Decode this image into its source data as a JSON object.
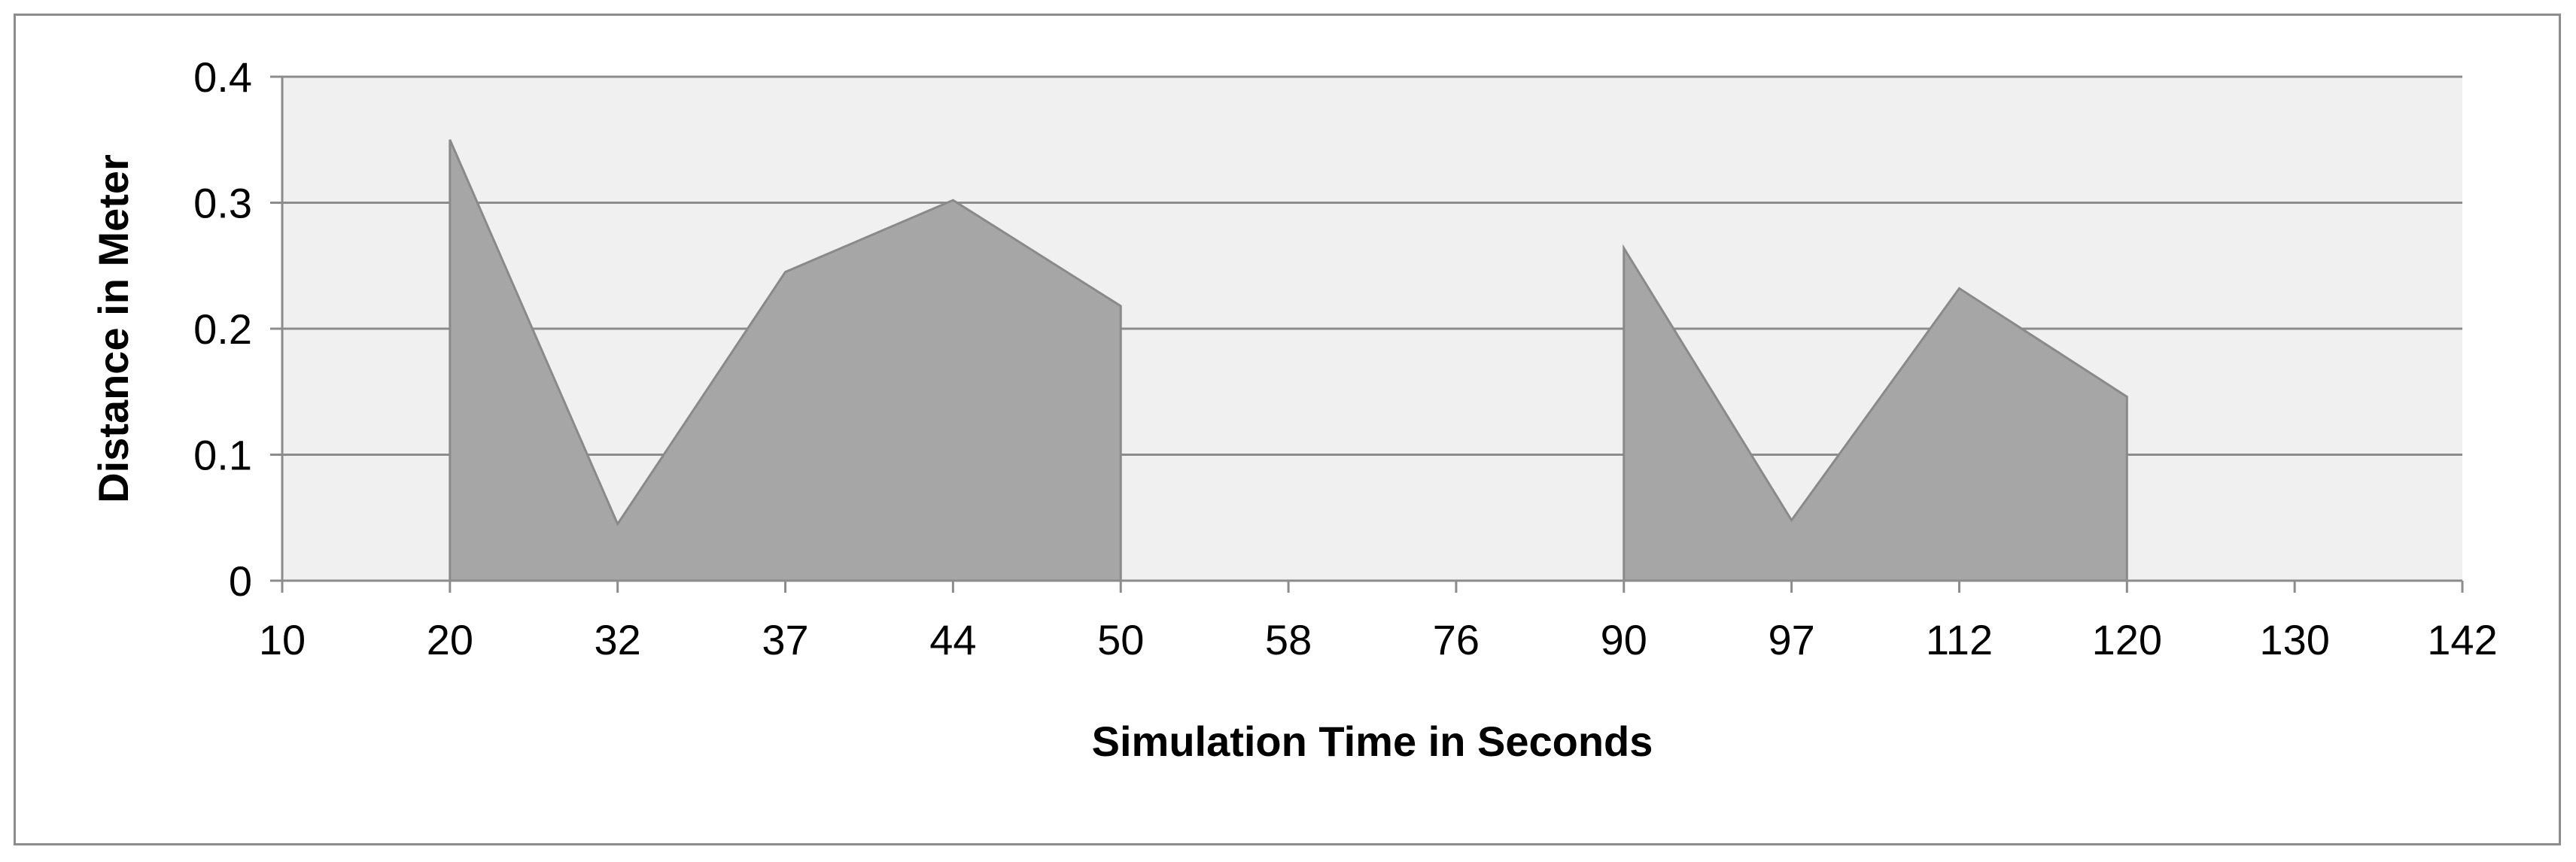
{
  "chart_data": {
    "type": "area",
    "title": "",
    "xlabel": "Simulation Time in Seconds",
    "ylabel": "Distance in Meter",
    "categories": [
      "10",
      "20",
      "32",
      "37",
      "44",
      "50",
      "58",
      "76",
      "90",
      "97",
      "112",
      "120",
      "130",
      "142"
    ],
    "series": [
      {
        "values": [
          null,
          0.35,
          0.045,
          0.245,
          0.302,
          0.218,
          null,
          null,
          0.264,
          0.048,
          0.232,
          0.146,
          null,
          null
        ]
      }
    ],
    "yticks": [
      "0",
      "0.1",
      "0.2",
      "0.3",
      "0.4"
    ],
    "ylim": [
      0,
      0.4
    ],
    "grid": true,
    "legend": "none",
    "colors": {
      "area_fill": "#a6a6a6",
      "area_stroke": "#8a8a8a",
      "plot_background": "#f0f0f0",
      "gridline": "#8c8c8c",
      "frame": "#8c8c8c"
    }
  }
}
